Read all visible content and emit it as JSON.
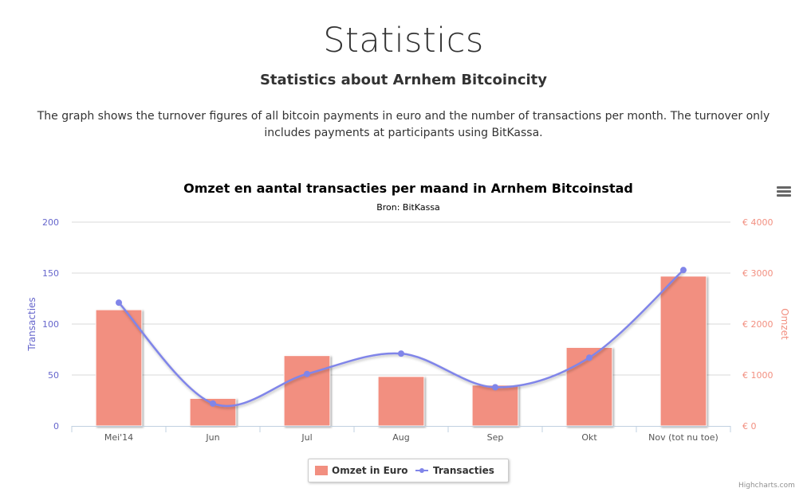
{
  "page": {
    "title": "Statistics",
    "subtitle": "Statistics about Arnhem Bitcoincity",
    "description": "The graph shows the turnover figures of all bitcoin payments in euro and the number of transactions per month. The turnover only includes payments at participants using BitKassa."
  },
  "chart_data": {
    "type": "bar",
    "title": "Omzet en aantal transacties per maand in Arnhem Bitcoinstad",
    "subtitle": "Bron: BitKassa",
    "categories": [
      "Mei'14",
      "Jun",
      "Jul",
      "Aug",
      "Sep",
      "Okt",
      "Nov (tot nu toe)"
    ],
    "left_axis": {
      "label": "Transacties",
      "range": [
        0,
        200
      ],
      "ticks": [
        0,
        50,
        100,
        150,
        200
      ],
      "tick_labels": [
        "0",
        "50",
        "100",
        "150",
        "200"
      ],
      "color": "#6666cc"
    },
    "right_axis": {
      "label": "Omzet",
      "range": [
        0,
        4000
      ],
      "ticks": [
        0,
        1000,
        2000,
        3000,
        4000
      ],
      "tick_labels": [
        "€ 0",
        "€ 1000",
        "€ 2000",
        "€ 3000",
        "€ 4000"
      ],
      "color": "#f28f80"
    },
    "series": [
      {
        "name": "Omzet in Euro",
        "type": "column",
        "axis": "right",
        "color": "#f28f80",
        "values": [
          2280,
          540,
          1380,
          970,
          800,
          1540,
          2940
        ]
      },
      {
        "name": "Transacties",
        "type": "spline",
        "axis": "left",
        "color": "#8085e9",
        "values": [
          121,
          22,
          51,
          71,
          38,
          67,
          153
        ]
      }
    ],
    "grid": true,
    "legend_position": "bottom-center",
    "menu_icon": "hamburger-menu-icon",
    "credits": "Highcharts.com"
  }
}
